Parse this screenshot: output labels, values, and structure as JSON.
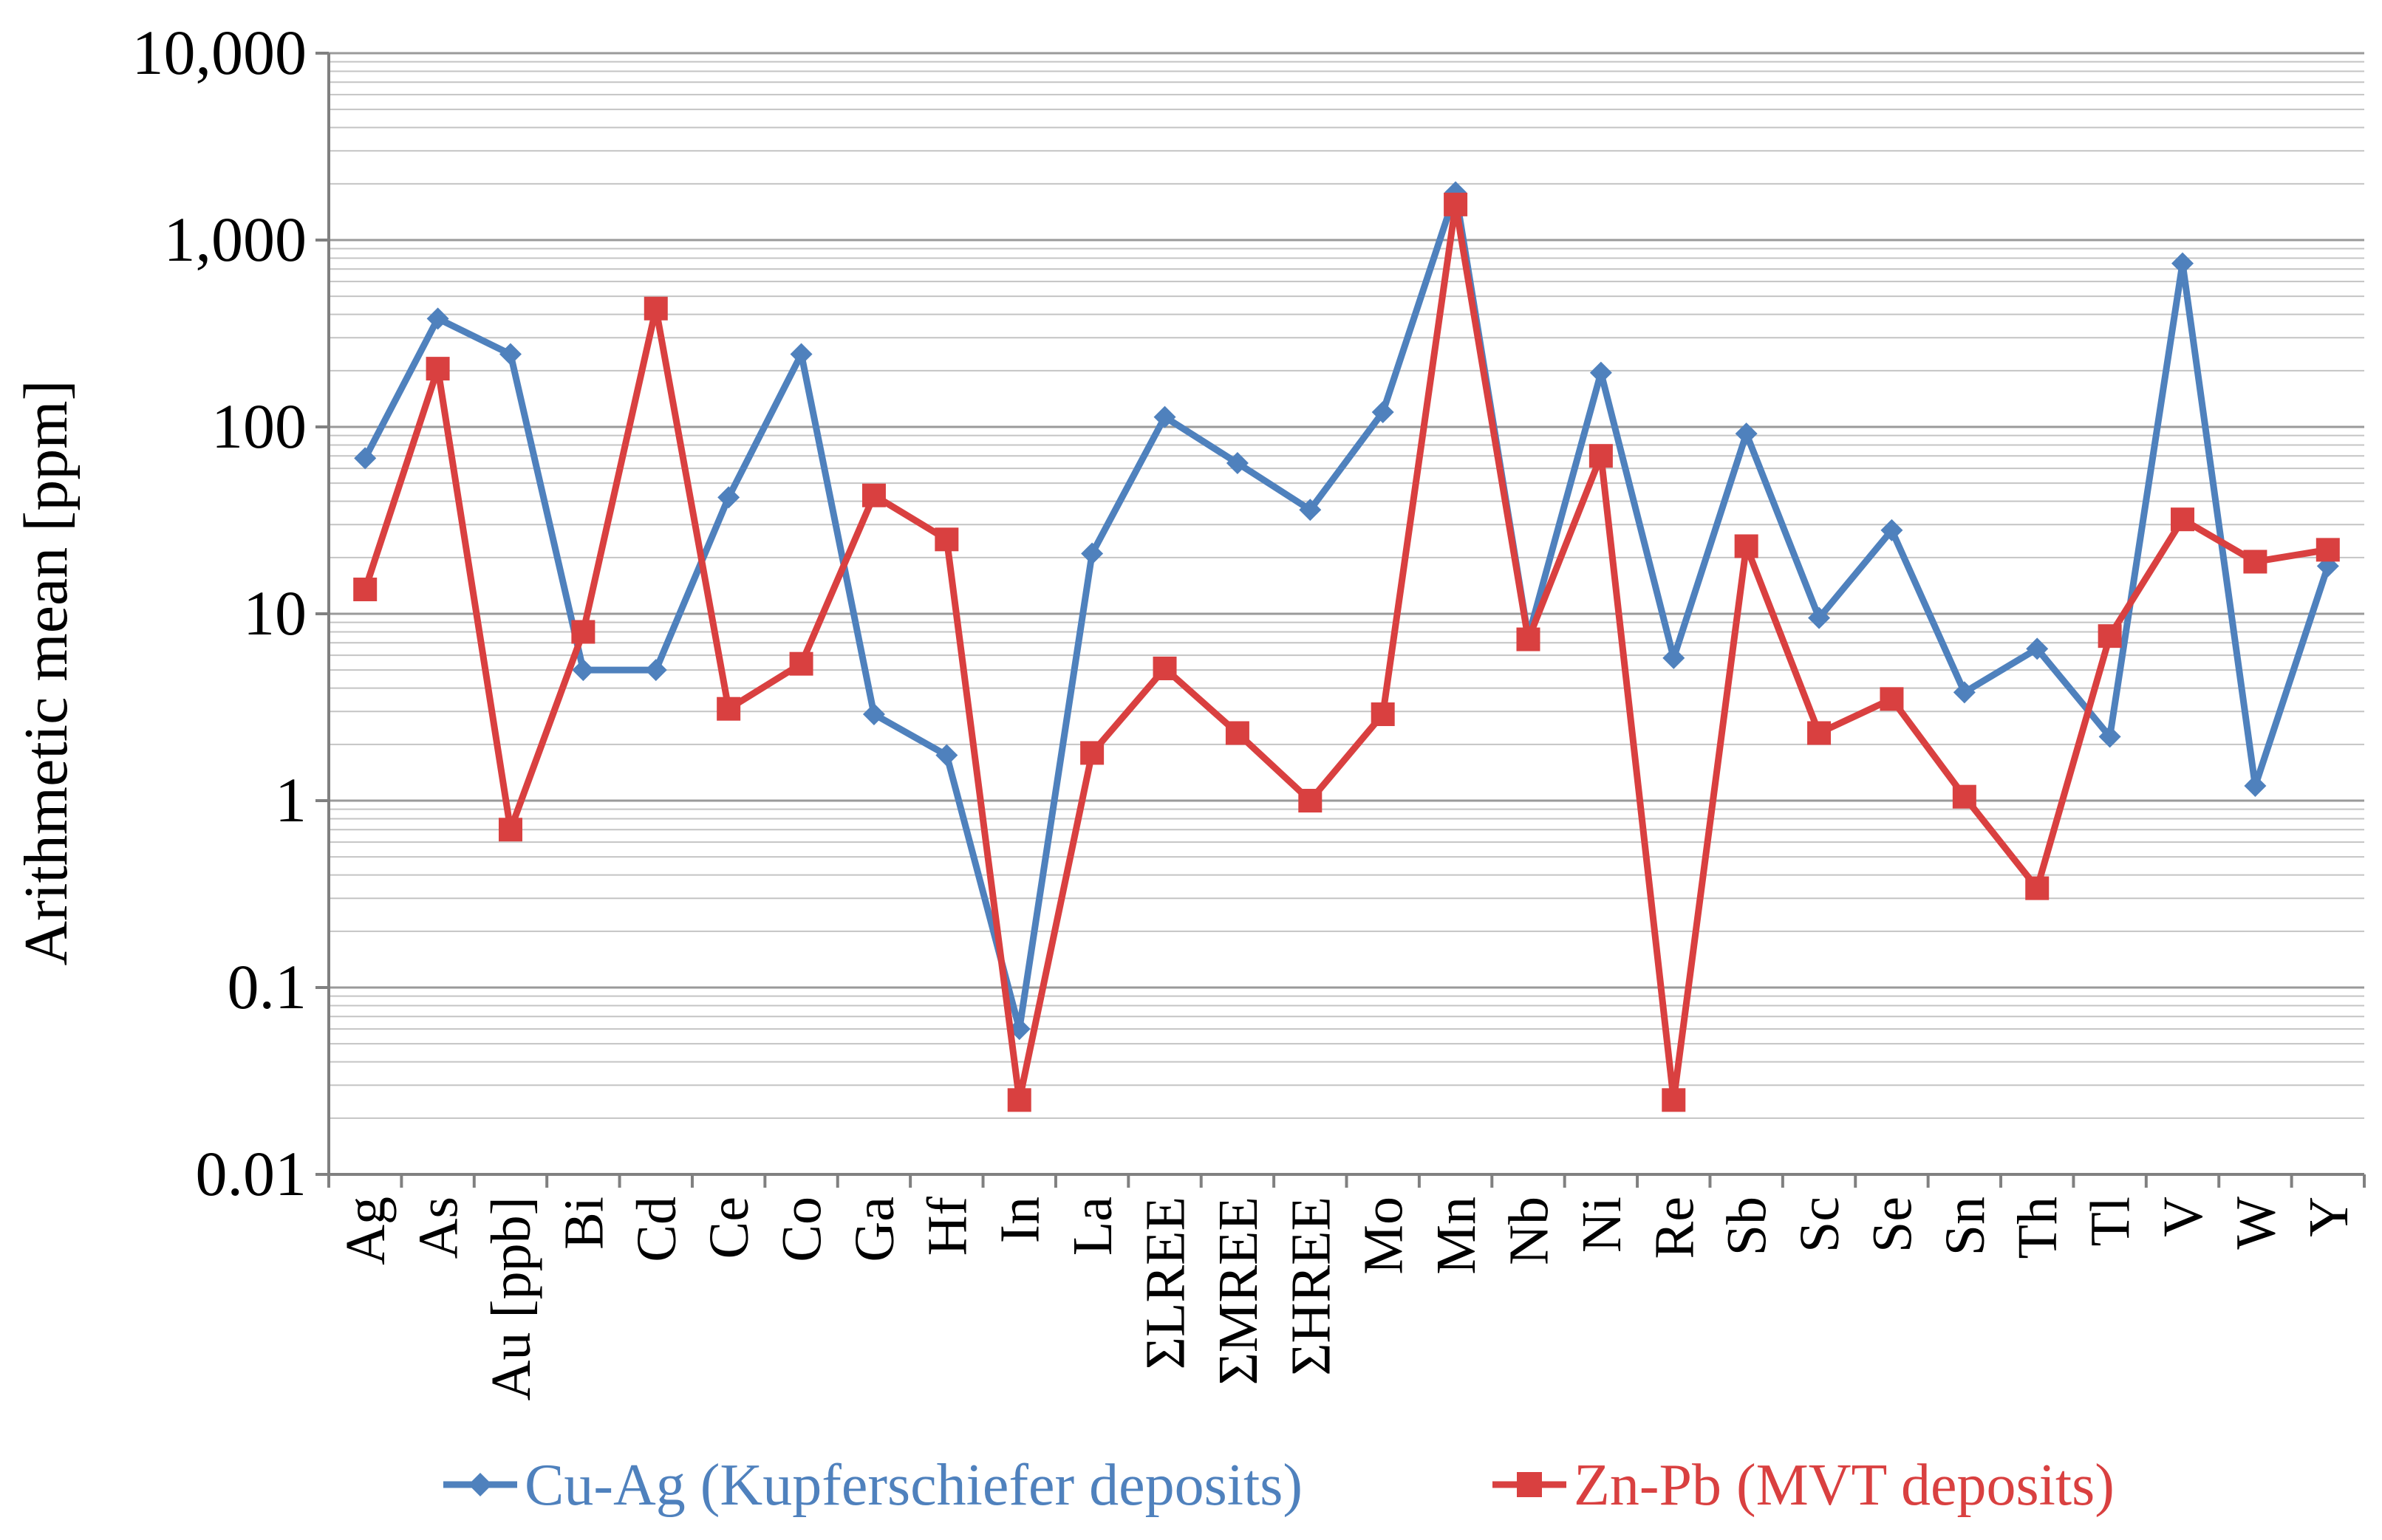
{
  "chart_data": {
    "type": "line",
    "ylabel": "Arithmetic mean [ppm]",
    "xlabel": "",
    "yscale": "log",
    "ylim": [
      0.01,
      10000
    ],
    "yticks": [
      "0.01",
      "0.1",
      "1",
      "10",
      "100",
      "1,000",
      "10,000"
    ],
    "grid": true,
    "legend_position": "bottom",
    "categories": [
      "Ag",
      "As",
      "Au [ppb]",
      "Bi",
      "Cd",
      "Ce",
      "Co",
      "Ga",
      "Hf",
      "In",
      "La",
      "ΣLREE",
      "ΣMREE",
      "ΣHREE",
      "Mo",
      "Mn",
      "Nb",
      "Ni",
      "Re",
      "Sb",
      "Sc",
      "Se",
      "Sn",
      "Th",
      "Tl",
      "V",
      "W",
      "Y"
    ],
    "series": [
      {
        "name": "Cu-Ag (Kupferschiefer deposits)",
        "color": "#4f81bd",
        "marker": "diamond",
        "values": [
          68,
          380,
          245,
          5,
          5,
          42,
          245,
          2.9,
          1.75,
          0.06,
          21,
          113,
          64,
          36,
          120,
          1800,
          7.5,
          195,
          5.8,
          92,
          9.5,
          28,
          3.8,
          6.5,
          2.2,
          750,
          1.2,
          18
        ]
      },
      {
        "name": "Zn-Pb (MVT deposits)",
        "color": "#d94040",
        "marker": "square",
        "values": [
          13.5,
          205,
          0.7,
          8,
          430,
          3.1,
          5.4,
          43,
          25,
          0.025,
          1.8,
          5.1,
          2.3,
          1.0,
          2.9,
          1550,
          7.3,
          70,
          0.025,
          23,
          2.3,
          3.5,
          1.05,
          0.34,
          7.6,
          32,
          19,
          22
        ]
      }
    ]
  }
}
